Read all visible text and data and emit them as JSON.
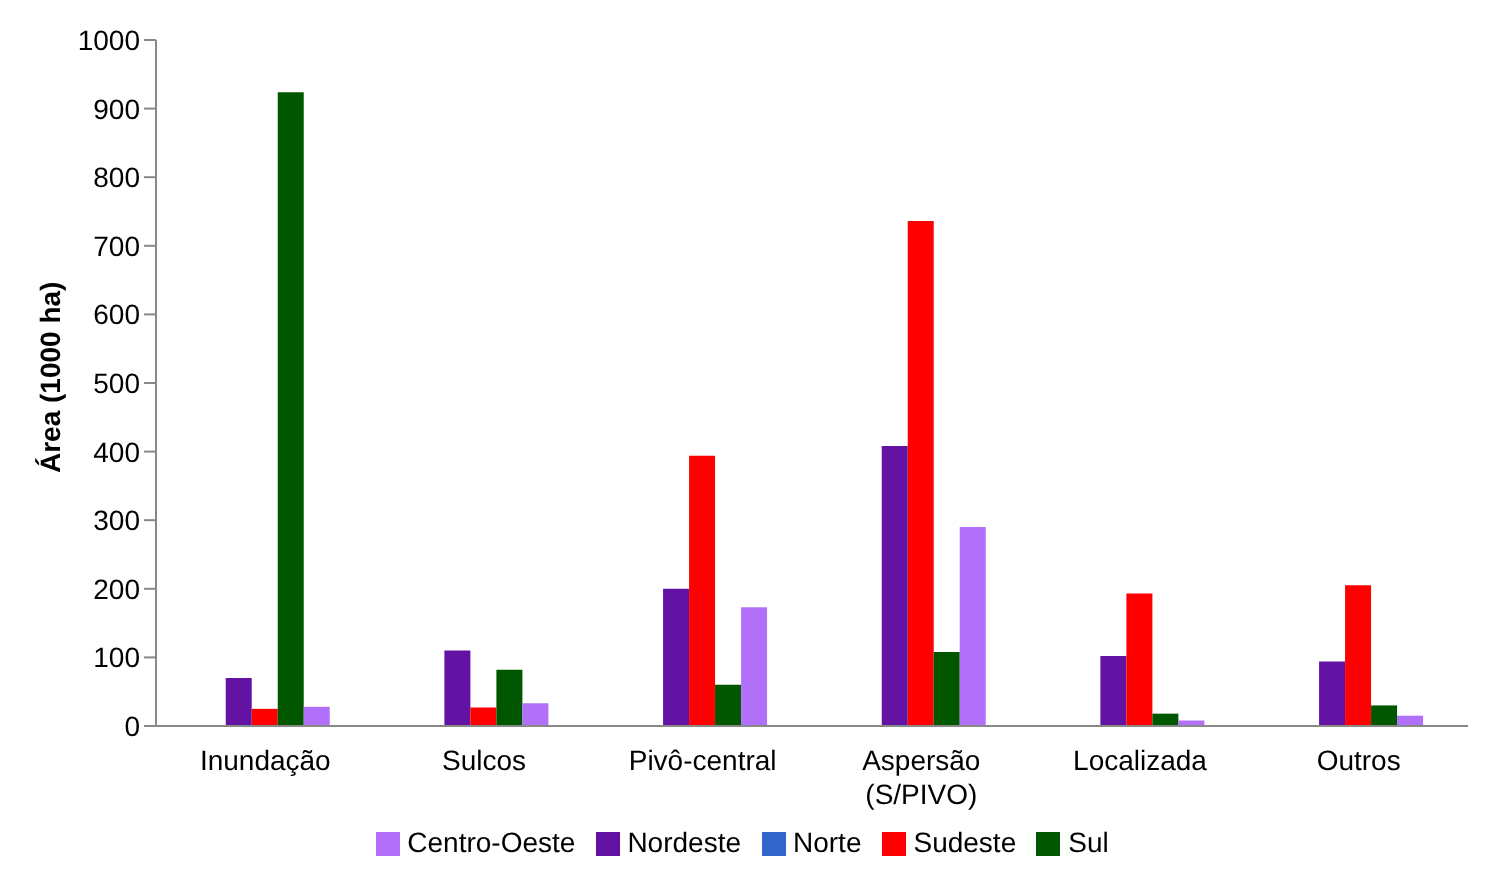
{
  "chart_data": {
    "type": "bar",
    "ylabel": "Área (1000 ha)",
    "categories": [
      "Inundação",
      "Sulcos",
      "Pivô-central",
      "Aspersão (S/PIVO)",
      "Localizada",
      "Outros"
    ],
    "series": [
      {
        "name": "Norte",
        "color": "#3366cc",
        "values": [
          0,
          0,
          0,
          0,
          0,
          0
        ]
      },
      {
        "name": "Nordeste",
        "color": "#6313a3",
        "values": [
          70,
          110,
          200,
          408,
          102,
          94
        ]
      },
      {
        "name": "Sudeste",
        "color": "#ff0000",
        "values": [
          25,
          27,
          394,
          736,
          193,
          205
        ]
      },
      {
        "name": "Sul",
        "color": "#005700",
        "values": [
          924,
          82,
          60,
          108,
          18,
          30
        ]
      },
      {
        "name": "Centro-Oeste",
        "color": "#b26ff9",
        "values": [
          28,
          33,
          173,
          290,
          8,
          15
        ]
      }
    ],
    "ylim": [
      0,
      1000
    ],
    "yticks": [
      0,
      100,
      200,
      300,
      400,
      500,
      600,
      700,
      800,
      900,
      1000
    ],
    "grid": false,
    "legend": "bottom"
  }
}
